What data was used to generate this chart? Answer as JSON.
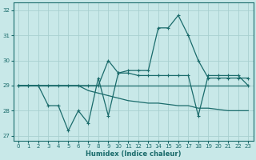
{
  "xlabel": "Humidex (Indice chaleur)",
  "bg_color": "#c8e8e8",
  "grid_color": "#a8d0d0",
  "line_color": "#1a6b6b",
  "xlim": [
    -0.5,
    23.5
  ],
  "ylim": [
    26.8,
    32.3
  ],
  "yticks": [
    27,
    28,
    29,
    30,
    31,
    32
  ],
  "xticks": [
    0,
    1,
    2,
    3,
    4,
    5,
    6,
    7,
    8,
    9,
    10,
    11,
    12,
    13,
    14,
    15,
    16,
    17,
    18,
    19,
    20,
    21,
    22,
    23
  ],
  "series": [
    {
      "y": [
        29,
        29,
        29,
        28.2,
        28.2,
        27.2,
        28.0,
        27.5,
        29.3,
        27.8,
        29.5,
        29.5,
        29.4,
        29.4,
        29.4,
        29.4,
        29.4,
        29.4,
        27.8,
        29.4,
        29.4,
        29.4,
        29.4,
        29.0
      ],
      "marker": true,
      "lw": 0.9
    },
    {
      "y": [
        29,
        29,
        29,
        29,
        29,
        29,
        29,
        29,
        29,
        30.0,
        29.5,
        29.6,
        29.6,
        29.6,
        31.3,
        31.3,
        31.8,
        31.0,
        30.0,
        29.3,
        29.3,
        29.3,
        29.3,
        29.3
      ],
      "marker": true,
      "lw": 0.9
    },
    {
      "y": [
        29,
        29,
        29,
        29,
        29,
        29,
        29,
        29,
        29,
        29,
        29,
        29,
        29,
        29,
        29,
        29,
        29,
        29,
        29,
        29,
        29,
        29,
        29,
        29
      ],
      "marker": false,
      "lw": 0.9
    },
    {
      "y": [
        29,
        29,
        29,
        29,
        29,
        29,
        29,
        28.8,
        28.7,
        28.6,
        28.5,
        28.4,
        28.35,
        28.3,
        28.3,
        28.25,
        28.2,
        28.2,
        28.1,
        28.1,
        28.05,
        28.0,
        28.0,
        28.0
      ],
      "marker": false,
      "lw": 0.9
    }
  ]
}
